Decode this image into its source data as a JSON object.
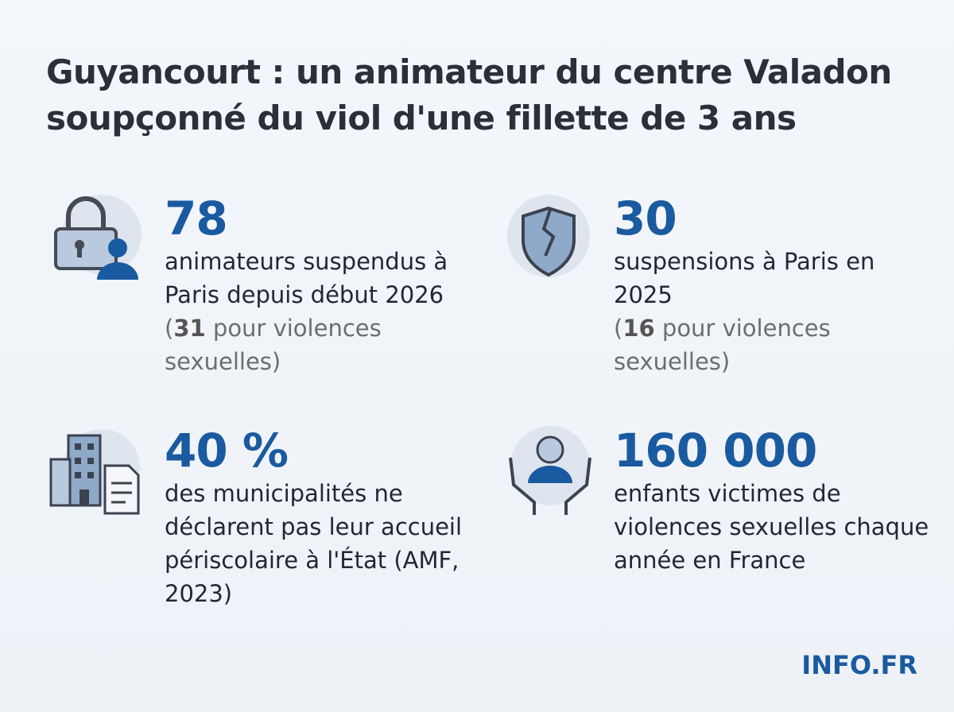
{
  "header": {
    "title": "Guyancourt : un animateur du centre Valadon soupçonné du viol d'une fillette de 3 ans"
  },
  "stats": [
    {
      "number": "78",
      "text": "animateurs suspendus à Paris depuis début 2026",
      "note": [
        {
          "text": "(",
          "bold": false
        },
        {
          "text": "31",
          "bold": true
        },
        {
          "text": " pour violences sexuelles)",
          "bold": false
        }
      ]
    },
    {
      "number": "30",
      "text": "suspensions à Paris en 2025",
      "note": [
        {
          "text": "(",
          "bold": false
        },
        {
          "text": "16",
          "bold": true
        },
        {
          "text": " pour violences sexuelles)",
          "bold": false
        }
      ]
    },
    {
      "number": "40 %",
      "text": "des municipalités ne déclarent pas leur accueil périscolaire à l'État (AMF, 2023)"
    },
    {
      "number": "160 000",
      "text": "enfants victimes de violences sexuelles chaque année en France"
    }
  ],
  "footer": {
    "brand": "INFO.FR"
  }
}
